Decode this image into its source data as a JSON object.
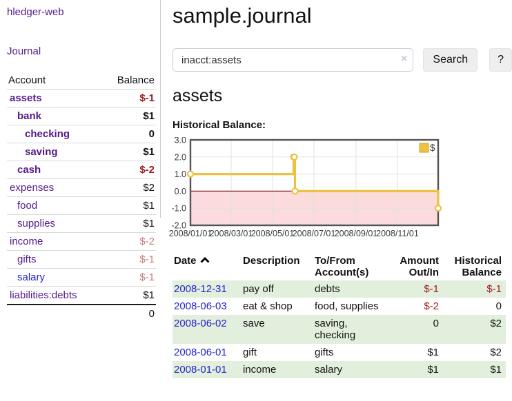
{
  "colors": {
    "link_purple": "#551a8b",
    "link_blue": "#2323cc",
    "negative": "#9c1b1b",
    "negative_muted": "#c08080",
    "row_green": "#e3efdd",
    "chart_line": "#edc240"
  },
  "sidebar": {
    "app_title": "hledger-web",
    "journal_link": "Journal",
    "accounts_table": {
      "headers": {
        "account": "Account",
        "balance": "Balance"
      },
      "rows": [
        {
          "name": "assets",
          "balance": "$-1"
        },
        {
          "name": "bank",
          "balance": "$1"
        },
        {
          "name": "checking",
          "balance": "0"
        },
        {
          "name": "saving",
          "balance": "$1"
        },
        {
          "name": "cash",
          "balance": "$-2"
        },
        {
          "name": "expenses",
          "balance": "$2"
        },
        {
          "name": "food",
          "balance": "$1"
        },
        {
          "name": "supplies",
          "balance": "$1"
        },
        {
          "name": "income",
          "balance": "$-2"
        },
        {
          "name": "gifts",
          "balance": "$-1"
        },
        {
          "name": "salary",
          "balance": "$-1"
        },
        {
          "name": "liabilities:debts",
          "balance": "$1"
        }
      ],
      "total": "0"
    }
  },
  "header": {
    "title": "sample.journal"
  },
  "search": {
    "value": "inacct:assets",
    "clear_icon": "×",
    "button_label": "Search",
    "help_label": "?"
  },
  "account_page": {
    "heading": "assets",
    "chart_title": "Historical Balance:"
  },
  "chart_data": {
    "type": "line",
    "step": true,
    "title": "Historical Balance",
    "x_range": [
      "2008-01-01",
      "2008-12-31"
    ],
    "ylim": [
      -2,
      3
    ],
    "y_ticks": [
      3.0,
      2.0,
      1.0,
      0.0,
      -1.0,
      -2.0
    ],
    "x_ticks": [
      "2008/01/01",
      "2008/03/01",
      "2008/05/01",
      "2008/07/01",
      "2008/09/01",
      "2008/11/01"
    ],
    "series": [
      {
        "name": "$",
        "color": "#edc240",
        "points": [
          [
            "2008-01-01",
            1
          ],
          [
            "2008-06-01",
            2
          ],
          [
            "2008-06-02",
            2
          ],
          [
            "2008-06-03",
            0
          ],
          [
            "2008-12-31",
            -1
          ]
        ]
      }
    ],
    "legend": {
      "label": "$",
      "position": "top-right"
    },
    "negative_fill": "#fbdbdb",
    "zero_line_color": "#8e1717",
    "grid_color": "#e2e2e2",
    "border_color": "#545454"
  },
  "transactions": {
    "headers": {
      "date": "Date",
      "description": "Description",
      "tofrom": "To/From Account(s)",
      "amount": "Amount Out/In",
      "balance": "Historical Balance"
    },
    "rows": [
      {
        "date": "2008-12-31",
        "description": "pay off",
        "accounts": "debts",
        "amount": "$-1",
        "balance": "$-1"
      },
      {
        "date": "2008-06-03",
        "description": "eat & shop",
        "accounts": "food, supplies",
        "amount": "$-2",
        "balance": "0"
      },
      {
        "date": "2008-06-02",
        "description": "save",
        "accounts": "saving, checking",
        "amount": "0",
        "balance": "$2"
      },
      {
        "date": "2008-06-01",
        "description": "gift",
        "accounts": "gifts",
        "amount": "$1",
        "balance": "$2"
      },
      {
        "date": "2008-01-01",
        "description": "income",
        "accounts": "salary",
        "amount": "$1",
        "balance": "$1"
      }
    ]
  }
}
